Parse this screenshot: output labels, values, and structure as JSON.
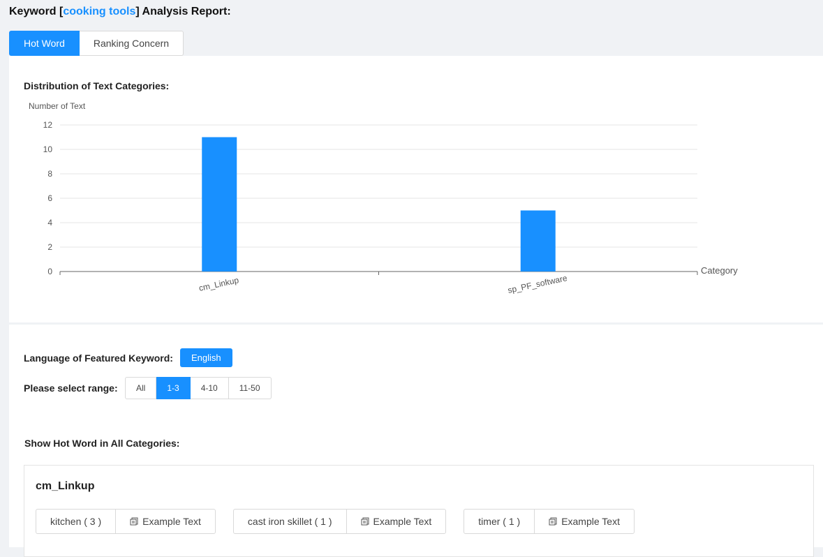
{
  "header": {
    "title_prefix": "Keyword [",
    "keyword": "cooking tools",
    "title_suffix": "] Analysis Report:"
  },
  "tabs": [
    {
      "label": "Hot Word",
      "active": true
    },
    {
      "label": "Ranking Concern",
      "active": false
    }
  ],
  "chart_section": {
    "label": "Distribution of Text Categories:"
  },
  "chart_data": {
    "type": "bar",
    "categories": [
      "cm_Linkup",
      "sp_PF_software"
    ],
    "values": [
      11,
      5
    ],
    "ylabel": "Number of Text",
    "xlabel": "Category",
    "yticks": [
      0,
      2,
      4,
      6,
      8,
      10,
      12
    ],
    "ylim": [
      0,
      12
    ],
    "grid": true,
    "bar_color": "#1890ff"
  },
  "language": {
    "label": "Language of Featured Keyword:",
    "button": "English"
  },
  "range": {
    "label": "Please select range:",
    "options": [
      "All",
      "1-3",
      "4-10",
      "11-50"
    ],
    "selected": "1-3"
  },
  "hot_words": {
    "label": "Show Hot Word in All Categories:",
    "categories": [
      {
        "name": "cm_Linkup",
        "words": [
          {
            "word": "kitchen ( 3 )",
            "example": "Example Text"
          },
          {
            "word": "cast iron skillet ( 1 )",
            "example": "Example Text"
          },
          {
            "word": "timer ( 1 )",
            "example": "Example Text"
          }
        ]
      }
    ]
  },
  "colors": {
    "accent": "#1890ff",
    "background": "#f0f2f5"
  }
}
